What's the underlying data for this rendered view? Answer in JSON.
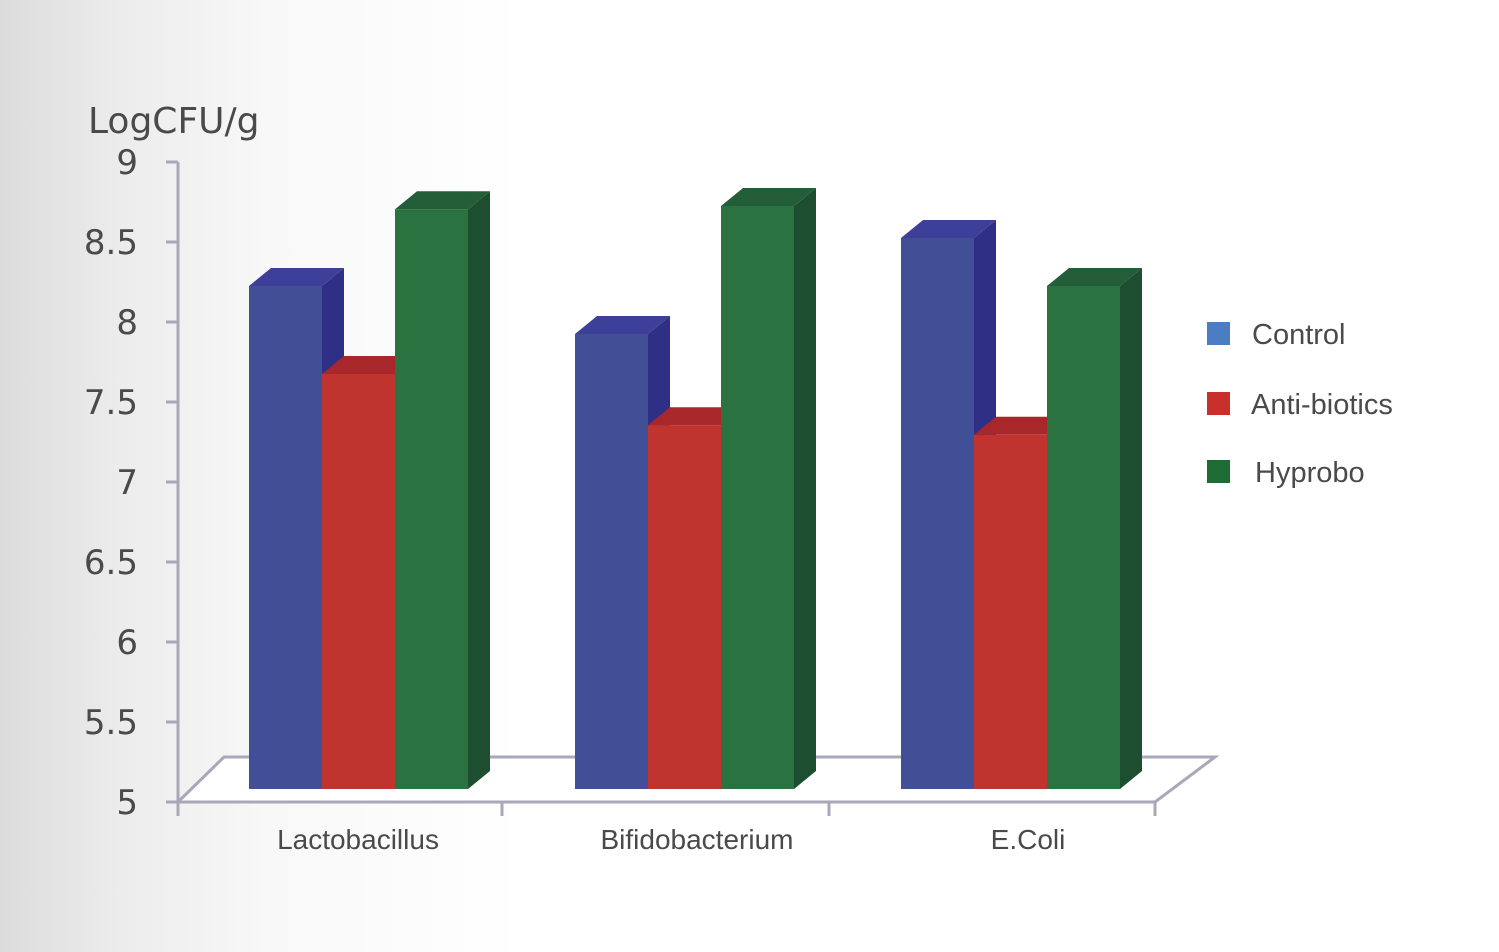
{
  "chart_data": {
    "type": "bar",
    "ylabel": "LogCFU/g",
    "ylim": [
      5,
      9
    ],
    "yticks": [
      "9",
      "8.5",
      "8",
      "7.5",
      "7",
      "6.5",
      "6",
      "5.5",
      "5"
    ],
    "categories": [
      "Lactobacillus",
      "Bifidobacterium",
      "E.Coli"
    ],
    "series": [
      {
        "name": "Control",
        "values": [
          8.35,
          8.05,
          8.65
        ]
      },
      {
        "name": "Anti-biotics",
        "values": [
          7.8,
          7.48,
          7.42
        ]
      },
      {
        "name": "Hyprobo",
        "values": [
          8.83,
          8.85,
          8.35
        ]
      }
    ],
    "legend_position": "right",
    "style": "3d-clustered-column"
  },
  "colors": {
    "Control": {
      "front": "#404f96",
      "side": "#2f2f86",
      "top": "#3d3f98",
      "legend": "#4a7ec2"
    },
    "Anti-biotics": {
      "front": "#c0342f",
      "side": "#9c2525",
      "top": "#a8272a",
      "legend": "#c9302c"
    },
    "Hyprobo": {
      "front": "#2a723f",
      "side": "#1e4e30",
      "top": "#245e38",
      "legend": "#1f6b34"
    },
    "axis": "#a8a8b8"
  }
}
